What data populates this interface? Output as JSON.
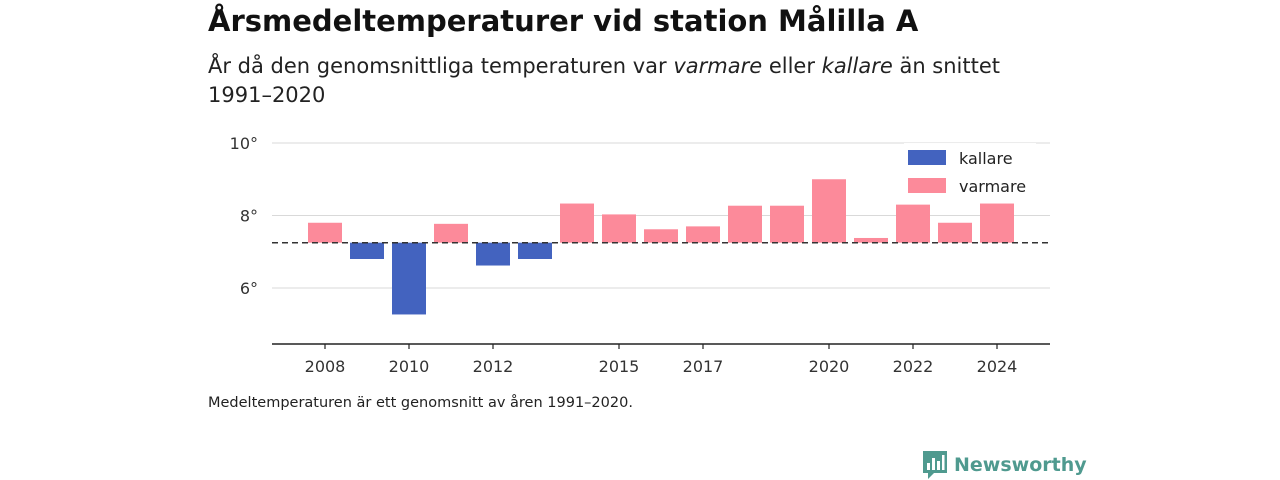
{
  "title": "Årsmedeltemperaturer vid station Målilla A",
  "subtitle": {
    "part1": "År då den genomsnittliga temperaturen var ",
    "em1": "varmare",
    "part2": " eller ",
    "em2": "kallare",
    "part3": " än snittet 1991–2020"
  },
  "footnote": "Medeltemperaturen är ett genomsnitt av åren 1991–2020.",
  "brand": {
    "name": "Newsworthy",
    "logo_icon": "newsworthy-bar-chart-logo",
    "color": "#4f9a8f"
  },
  "chart_data": {
    "type": "bar",
    "baseline": 7.25,
    "categories": [
      2008,
      2009,
      2010,
      2011,
      2012,
      2013,
      2014,
      2015,
      2016,
      2017,
      2018,
      2019,
      2020,
      2021,
      2022,
      2023,
      2024
    ],
    "values": [
      7.8,
      6.8,
      5.27,
      7.77,
      6.62,
      6.8,
      8.33,
      8.03,
      7.62,
      7.7,
      8.27,
      8.27,
      9.0,
      7.38,
      8.3,
      7.8,
      8.33
    ],
    "series": [
      {
        "name": "kallare",
        "color": "#4363bf"
      },
      {
        "name": "varmare",
        "color": "#fc8a9a"
      }
    ],
    "ylim": [
      4.5,
      10
    ],
    "yticks": [
      {
        "value": 6,
        "label": "6°"
      },
      {
        "value": 8,
        "label": "8°"
      },
      {
        "value": 10,
        "label": "10°"
      }
    ],
    "xticks": [
      {
        "value": 2008,
        "label": "2008"
      },
      {
        "value": 2010,
        "label": "2010"
      },
      {
        "value": 2012,
        "label": "2012"
      },
      {
        "value": 2015,
        "label": "2015"
      },
      {
        "value": 2017,
        "label": "2017"
      },
      {
        "value": 2020,
        "label": "2020"
      },
      {
        "value": 2022,
        "label": "2022"
      },
      {
        "value": 2024,
        "label": "2024"
      }
    ],
    "grid": true,
    "legend_position": "top-right",
    "baseline_style": "dashed"
  }
}
